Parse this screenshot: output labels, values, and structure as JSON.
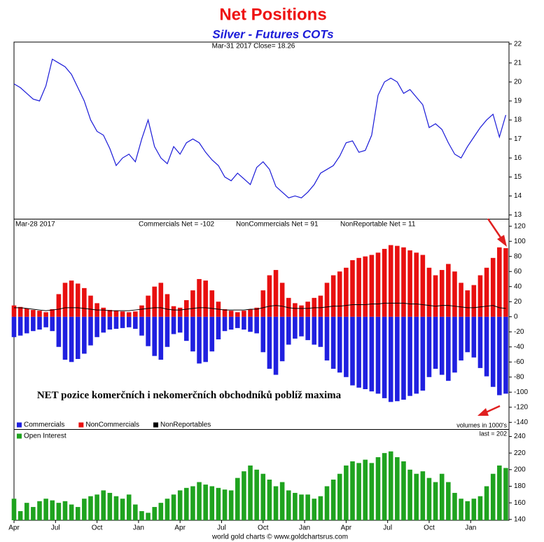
{
  "chart_data": [
    {
      "type": "line",
      "title": "Net Positions",
      "subtitle": "Silver - Futures COTs",
      "header": "Mar-31  2017  Close= 18.26",
      "color": "#1a1ad8",
      "values": [
        19.9,
        19.7,
        19.4,
        19.1,
        19.0,
        19.8,
        21.2,
        21.0,
        20.8,
        20.4,
        19.7,
        19.0,
        18.0,
        17.4,
        17.2,
        16.5,
        15.6,
        16.0,
        16.2,
        15.8,
        17.0,
        18.0,
        16.6,
        16.0,
        15.7,
        16.6,
        16.2,
        16.8,
        17.0,
        16.8,
        16.3,
        15.9,
        15.6,
        15.0,
        14.8,
        15.2,
        14.9,
        14.6,
        15.5,
        15.8,
        15.4,
        14.5,
        14.2,
        13.9,
        14.0,
        13.9,
        14.2,
        14.6,
        15.2,
        15.4,
        15.6,
        16.1,
        16.8,
        16.9,
        16.3,
        16.4,
        17.2,
        19.3,
        20.0,
        20.2,
        20.0,
        19.4,
        19.6,
        19.2,
        18.8,
        17.6,
        17.8,
        17.5,
        16.8,
        16.2,
        16.0,
        16.6,
        17.1,
        17.6,
        18.0,
        18.3,
        17.1,
        18.26
      ],
      "ylim": [
        12.8,
        22.1
      ],
      "yticks": [
        13,
        14,
        15,
        16,
        17,
        18,
        19,
        20,
        21,
        22
      ]
    },
    {
      "type": "bar",
      "header": [
        "Mar-28  2017",
        "Commercials Net = -102",
        "NonCommercials Net = 91",
        "NonReportable Net = 11"
      ],
      "annotation": "NET pozice komerčních i nekomerčních obchodníků poblíž maxima",
      "units_note": "volumes in 1000's",
      "series": [
        {
          "name": "Commercials",
          "color": "#2020e0",
          "style": "bar",
          "values": [
            -27,
            -25,
            -22,
            -19,
            -17,
            -14,
            -19,
            -40,
            -57,
            -60,
            -56,
            -49,
            -38,
            -27,
            -21,
            -17,
            -16,
            -15,
            -14,
            -16,
            -25,
            -39,
            -52,
            -57,
            -40,
            -23,
            -21,
            -32,
            -46,
            -62,
            -60,
            -46,
            -30,
            -19,
            -17,
            -15,
            -17,
            -20,
            -22,
            -47,
            -69,
            -77,
            -59,
            -37,
            -29,
            -26,
            -31,
            -37,
            -40,
            -58,
            -69,
            -74,
            -80,
            -91,
            -94,
            -96,
            -99,
            -102,
            -108,
            -113,
            -112,
            -110,
            -105,
            -102,
            -98,
            -80,
            -69,
            -77,
            -85,
            -74,
            -58,
            -47,
            -54,
            -68,
            -79,
            -93,
            -104,
            -102
          ]
        },
        {
          "name": "NonCommercials",
          "color": "#e81010",
          "style": "bar",
          "values": [
            15,
            13,
            11,
            9,
            8,
            6,
            10,
            30,
            45,
            48,
            44,
            38,
            28,
            18,
            12,
            9,
            8,
            7,
            6,
            7,
            15,
            28,
            40,
            45,
            30,
            14,
            12,
            22,
            35,
            50,
            48,
            35,
            20,
            10,
            8,
            6,
            8,
            10,
            12,
            35,
            55,
            62,
            45,
            25,
            18,
            15,
            20,
            25,
            28,
            45,
            55,
            60,
            65,
            75,
            78,
            80,
            82,
            85,
            90,
            95,
            94,
            92,
            88,
            85,
            82,
            65,
            55,
            62,
            70,
            60,
            45,
            35,
            42,
            55,
            65,
            78,
            92,
            91
          ]
        },
        {
          "name": "NonReportables",
          "color": "#000000",
          "style": "line",
          "values": [
            12,
            12,
            11,
            10,
            9,
            8,
            9,
            10,
            12,
            12,
            12,
            11,
            10,
            9,
            9,
            8,
            8,
            8,
            8,
            9,
            10,
            11,
            12,
            12,
            10,
            9,
            9,
            10,
            11,
            12,
            12,
            11,
            10,
            9,
            9,
            9,
            9,
            10,
            10,
            12,
            14,
            15,
            14,
            12,
            11,
            11,
            11,
            12,
            12,
            13,
            14,
            14,
            15,
            16,
            16,
            16,
            17,
            17,
            18,
            18,
            18,
            18,
            17,
            17,
            16,
            15,
            14,
            15,
            15,
            14,
            13,
            12,
            12,
            13,
            14,
            15,
            12,
            11
          ]
        }
      ],
      "ylim": [
        -149,
        129
      ],
      "yticks": [
        -140,
        -120,
        -100,
        -80,
        -60,
        -40,
        -20,
        0,
        20,
        40,
        60,
        80,
        100,
        120
      ]
    },
    {
      "type": "bar",
      "header": "last = 202",
      "source": "world gold charts © www.goldchartsrus.com",
      "series": [
        {
          "name": "Open Interest",
          "color": "#1fa31f",
          "style": "bar",
          "values": [
            165,
            150,
            160,
            155,
            162,
            165,
            163,
            160,
            162,
            158,
            155,
            165,
            168,
            170,
            175,
            172,
            168,
            165,
            170,
            158,
            150,
            148,
            155,
            160,
            165,
            170,
            175,
            178,
            180,
            185,
            182,
            180,
            178,
            176,
            175,
            190,
            198,
            205,
            200,
            195,
            188,
            180,
            185,
            175,
            172,
            170,
            170,
            165,
            168,
            180,
            188,
            195,
            205,
            210,
            208,
            212,
            208,
            215,
            220,
            222,
            215,
            210,
            200,
            195,
            198,
            190,
            185,
            195,
            185,
            172,
            165,
            162,
            165,
            168,
            180,
            195,
            205,
            202
          ]
        }
      ],
      "ylim": [
        139,
        248
      ],
      "yticks": [
        140,
        160,
        180,
        200,
        220,
        240
      ],
      "x": [
        0,
        2,
        4,
        6,
        8,
        10,
        12,
        14,
        16,
        18,
        20,
        22,
        24,
        26,
        28,
        30,
        32,
        34,
        36,
        38,
        40,
        42,
        44,
        46,
        48,
        50,
        52,
        54,
        56,
        58,
        60,
        62,
        64,
        66,
        68,
        70,
        72,
        74,
        76,
        78,
        80,
        82,
        84,
        86,
        88,
        90,
        92,
        94,
        96,
        98,
        100,
        102,
        104,
        106,
        108,
        110,
        112,
        114,
        116,
        118,
        120,
        122,
        124,
        126,
        128,
        130,
        132,
        134,
        136,
        138,
        140,
        142,
        144,
        146,
        148,
        150,
        152,
        154
      ],
      "xlim": [
        0,
        155
      ],
      "xticks": [
        {
          "value": 0,
          "label": "Apr"
        },
        {
          "value": 13,
          "label": "Jul"
        },
        {
          "value": 26,
          "label": "Oct"
        },
        {
          "value": 39,
          "label": "Jan"
        },
        {
          "value": 52,
          "label": "Apr"
        },
        {
          "value": 65,
          "label": "Jul"
        },
        {
          "value": 78,
          "label": "Oct"
        },
        {
          "value": 91,
          "label": "Jan"
        },
        {
          "value": 104,
          "label": "Apr"
        },
        {
          "value": 117,
          "label": "Jul"
        },
        {
          "value": 130,
          "label": "Oct"
        },
        {
          "value": 143,
          "label": "Jan"
        }
      ]
    }
  ]
}
